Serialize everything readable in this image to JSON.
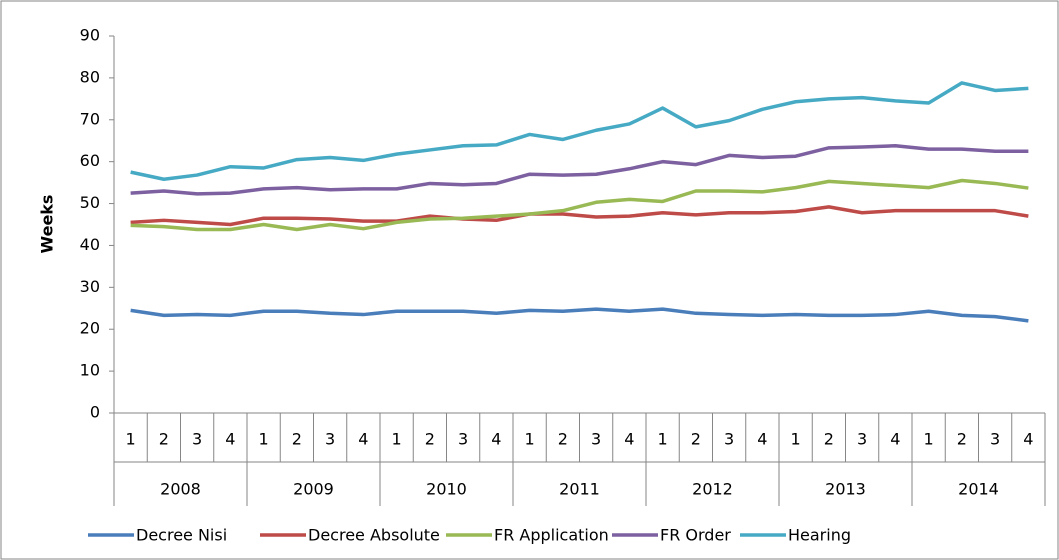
{
  "chart_data": {
    "type": "line",
    "y_label": "Weeks",
    "categories": [
      "1",
      "2",
      "3",
      "4",
      "1",
      "2",
      "3",
      "4",
      "1",
      "2",
      "3",
      "4",
      "1",
      "2",
      "3",
      "4",
      "1",
      "2",
      "3",
      "4",
      "1",
      "2",
      "3",
      "4",
      "1",
      "2",
      "3",
      "4"
    ],
    "groups": [
      "2008",
      "2009",
      "2010",
      "2011",
      "2012",
      "2013",
      "2014"
    ],
    "ylim": [
      0,
      90
    ],
    "yticks": [
      0,
      10,
      20,
      30,
      40,
      50,
      60,
      70,
      80,
      90
    ],
    "grid": false,
    "legend": "bottom",
    "series": [
      {
        "name": "Decree Nisi",
        "color": "#4a7ebb",
        "values": [
          24.5,
          23.3,
          23.5,
          23.3,
          24.3,
          24.3,
          23.8,
          23.5,
          24.3,
          24.3,
          24.3,
          23.8,
          24.5,
          24.3,
          24.8,
          24.3,
          24.8,
          23.8,
          23.5,
          23.3,
          23.5,
          23.3,
          23.3,
          23.5,
          24.3,
          23.3,
          23.0,
          22.0
        ]
      },
      {
        "name": "Decree Absolute",
        "color": "#be4b48",
        "values": [
          45.5,
          46,
          45.5,
          45,
          46.5,
          46.5,
          46.3,
          45.8,
          45.8,
          47,
          46.3,
          46,
          47.5,
          47.5,
          46.8,
          47,
          47.8,
          47.3,
          47.8,
          47.8,
          48.1,
          49.2,
          47.8,
          48.3,
          48.3,
          48.3,
          48.3,
          47
        ]
      },
      {
        "name": "FR Application",
        "color": "#98b954",
        "values": [
          44.8,
          44.5,
          43.8,
          43.8,
          45,
          43.8,
          45,
          44,
          45.5,
          46.3,
          46.5,
          47,
          47.5,
          48.3,
          50.3,
          51,
          50.5,
          53,
          53,
          52.8,
          53.8,
          55.3,
          54.8,
          54.3,
          53.8,
          55.5,
          54.8,
          53.7
        ]
      },
      {
        "name": "FR Order",
        "color": "#7d60a0",
        "values": [
          52.5,
          53,
          52.3,
          52.5,
          53.5,
          53.8,
          53.3,
          53.5,
          53.5,
          54.8,
          54.5,
          54.8,
          57,
          56.8,
          57,
          58.3,
          60,
          59.3,
          61.5,
          61,
          61.3,
          63.3,
          63.5,
          63.8,
          63,
          63,
          62.5,
          62.5
        ]
      },
      {
        "name": "Hearing",
        "color": "#46aac5",
        "values": [
          57.5,
          55.8,
          56.8,
          58.8,
          58.5,
          60.5,
          61,
          60.3,
          61.8,
          62.8,
          63.8,
          64,
          66.5,
          65.3,
          67.5,
          69,
          72.8,
          68.3,
          69.8,
          72.5,
          74.3,
          75,
          75.3,
          74.5,
          74,
          78.8,
          77,
          77.5
        ]
      }
    ]
  }
}
